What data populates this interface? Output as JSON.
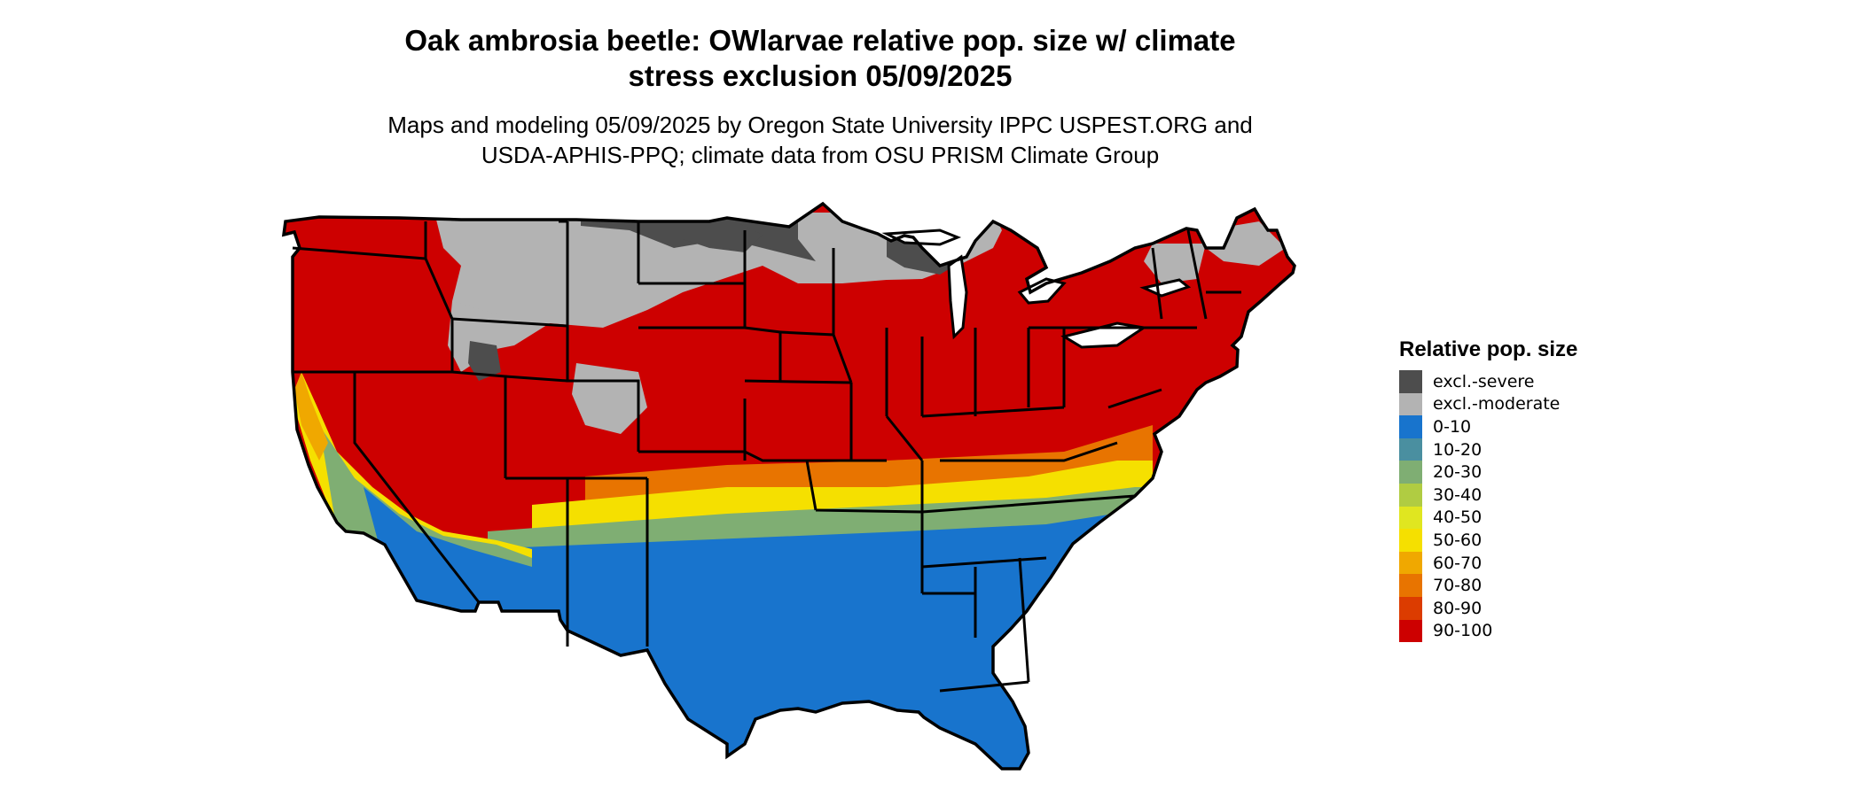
{
  "map": {
    "title_line1": "Oak ambrosia beetle: OWlarvae relative pop. size w/ climate",
    "title_line2": "stress exclusion 05/09/2025",
    "subtitle_line1": "Maps and modeling 05/09/2025 by Oregon State University IPPC USPEST.ORG and",
    "subtitle_line2": "USDA-APHIS-PPQ; climate data from OSU PRISM Climate Group",
    "region": "Contiguous United States"
  },
  "legend": {
    "title": "Relative pop. size",
    "items": [
      {
        "label": "excl.-severe",
        "color": "#4d4d4d"
      },
      {
        "label": "excl.-moderate",
        "color": "#b3b3b3"
      },
      {
        "label": "0-10",
        "color": "#1874cd"
      },
      {
        "label": "10-20",
        "color": "#4a8fa0"
      },
      {
        "label": "20-30",
        "color": "#7fae73"
      },
      {
        "label": "30-40",
        "color": "#b0cc42"
      },
      {
        "label": "40-50",
        "color": "#e0e620"
      },
      {
        "label": "50-60",
        "color": "#f5e000"
      },
      {
        "label": "60-70",
        "color": "#f0a800"
      },
      {
        "label": "70-80",
        "color": "#e87400"
      },
      {
        "label": "80-90",
        "color": "#dc3c00"
      },
      {
        "label": "90-100",
        "color": "#cd0000"
      }
    ]
  }
}
